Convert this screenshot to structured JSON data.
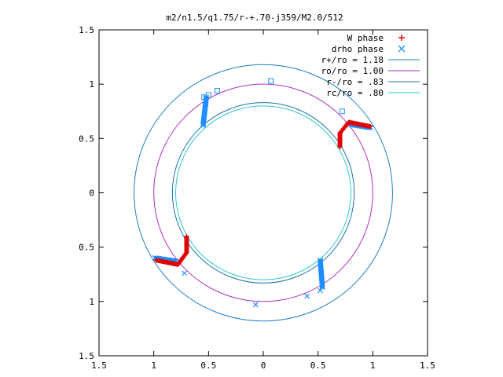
{
  "chart_data": {
    "type": "scatter",
    "title": "m2/n1.5/q1.75/r-+.70-j359/M2.0/512",
    "xlabel": "",
    "ylabel": "",
    "xlim": [
      -1.5,
      1.5
    ],
    "ylim": [
      -1.5,
      1.5
    ],
    "x_ticks": [
      -1.5,
      -1,
      -0.5,
      0,
      0.5,
      1,
      1.5
    ],
    "x_tick_labels": [
      "1.5",
      "1",
      "0.5",
      "0",
      "0.5",
      "1",
      "1.5"
    ],
    "y_ticks": [
      1.5,
      1,
      0.5,
      0,
      -0.5,
      -1,
      -1.5
    ],
    "y_tick_labels": [
      "1.5",
      "1",
      "0.5",
      "0",
      "0.5",
      "1",
      "1.5"
    ],
    "grid": false,
    "legend_position": "top-right",
    "circles": [
      {
        "name": "r+/ro = 1.18",
        "radius": 1.18,
        "color": "#1f7fc0"
      },
      {
        "name": "ro/ro = 1.00",
        "radius": 1.0,
        "color": "#b030c0"
      },
      {
        "name": "r-/ro = .83",
        "radius": 0.83,
        "color": "#1f6fb0"
      },
      {
        "name": "rc/ro = .80",
        "radius": 0.8,
        "color": "#30c8c8"
      }
    ],
    "series": [
      {
        "name": "W phase",
        "marker": "plus",
        "color": "#e00000",
        "arms": [
          {
            "center": [
              0.7,
              0.43
            ],
            "start_deg": 180,
            "end_deg": 90,
            "r": 0.15
          },
          {
            "center": [
              0.89,
              0.63
            ],
            "start_deg": 180,
            "end_deg": 0,
            "r": 0.0
          },
          {
            "center": [
              -0.7,
              -0.43
            ],
            "start_deg": 0,
            "end_deg": -90,
            "r": 0.15
          }
        ],
        "points_segments": [
          {
            "from": [
              0.7,
              0.42
            ],
            "to": [
              0.7,
              0.55
            ]
          },
          {
            "from": [
              0.7,
              0.55
            ],
            "to": [
              0.78,
              0.65
            ]
          },
          {
            "from": [
              0.78,
              0.65
            ],
            "to": [
              0.98,
              0.61
            ]
          },
          {
            "from": [
              -0.7,
              -0.4
            ],
            "to": [
              -0.7,
              -0.55
            ]
          },
          {
            "from": [
              -0.7,
              -0.55
            ],
            "to": [
              -0.78,
              -0.66
            ]
          },
          {
            "from": [
              -0.78,
              -0.66
            ],
            "to": [
              -0.98,
              -0.62
            ]
          }
        ]
      },
      {
        "name": "drho phase",
        "marker": "cross",
        "color": "#1e8fff",
        "points_segments": [
          {
            "from": [
              0.8,
              0.63
            ],
            "to": [
              0.98,
              0.6
            ]
          },
          {
            "from": [
              -0.8,
              -0.63
            ],
            "to": [
              -0.99,
              -0.6
            ]
          },
          {
            "from": [
              0.52,
              -0.62
            ],
            "to": [
              0.54,
              -0.87
            ]
          },
          {
            "from": [
              -0.55,
              0.62
            ],
            "to": [
              -0.52,
              0.88
            ]
          }
        ],
        "scatter_points": [
          [
            0.72,
            0.75
          ],
          [
            0.78,
            0.63
          ],
          [
            0.07,
            1.03
          ],
          [
            -0.42,
            0.94
          ],
          [
            -0.5,
            0.9
          ],
          [
            -0.54,
            0.88
          ],
          [
            0.52,
            -0.9
          ],
          [
            0.4,
            -0.95
          ],
          [
            -0.07,
            -1.03
          ],
          [
            -0.72,
            -0.74
          ],
          [
            -0.77,
            -0.63
          ]
        ]
      }
    ]
  }
}
